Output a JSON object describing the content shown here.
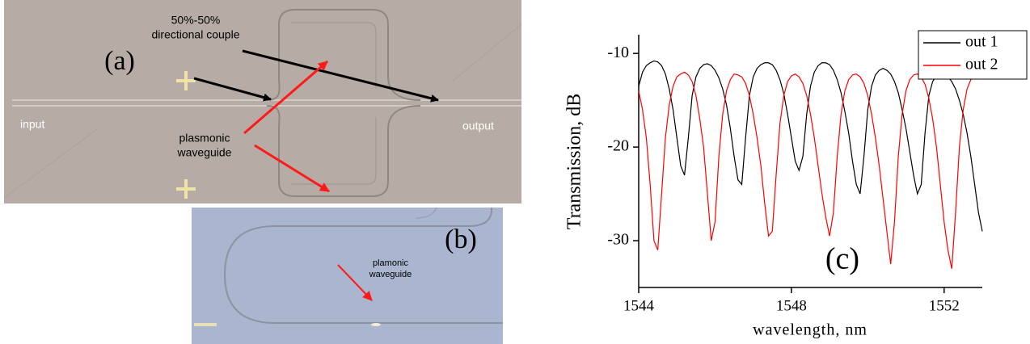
{
  "figure_a": {
    "panel_label": "(a)",
    "coupler_label": [
      "50%-50%",
      "directional couple"
    ],
    "input_label": "input",
    "output_label": "output",
    "waveguide_label": [
      "plasmonic",
      "waveguide"
    ]
  },
  "figure_b": {
    "panel_label": "(b)",
    "waveguide_label": [
      "plamonic",
      "waveguide"
    ]
  },
  "chart_data": {
    "type": "line",
    "panel_label": "(c)",
    "x_label": "wavelength, nm",
    "y_label": "Transmission, dB",
    "xlim": [
      1544,
      1553
    ],
    "ylim": [
      -35,
      -8
    ],
    "xticks": [
      1544,
      1548,
      1552
    ],
    "yticks": [
      -10,
      -20,
      -30
    ],
    "legend": "top-right",
    "x": [
      1544.0,
      1544.1,
      1544.2,
      1544.3,
      1544.4,
      1544.5,
      1544.6,
      1544.7,
      1544.8,
      1544.9,
      1545.0,
      1545.1,
      1545.2,
      1545.3,
      1545.4,
      1545.5,
      1545.6,
      1545.7,
      1545.8,
      1545.9,
      1546.0,
      1546.1,
      1546.2,
      1546.3,
      1546.4,
      1546.5,
      1546.6,
      1546.7,
      1546.8,
      1546.9,
      1547.0,
      1547.1,
      1547.2,
      1547.3,
      1547.4,
      1547.5,
      1547.6,
      1547.7,
      1547.8,
      1547.9,
      1548.0,
      1548.1,
      1548.2,
      1548.3,
      1548.4,
      1548.5,
      1548.6,
      1548.7,
      1548.8,
      1548.9,
      1549.0,
      1549.1,
      1549.2,
      1549.3,
      1549.4,
      1549.5,
      1549.6,
      1549.7,
      1549.8,
      1549.9,
      1550.0,
      1550.1,
      1550.2,
      1550.3,
      1550.4,
      1550.5,
      1550.6,
      1550.7,
      1550.8,
      1550.9,
      1551.0,
      1551.1,
      1551.2,
      1551.3,
      1551.4,
      1551.5,
      1551.6,
      1551.7,
      1551.8,
      1551.9,
      1552.0,
      1552.1,
      1552.2,
      1552.3,
      1552.4,
      1552.5,
      1552.6,
      1552.7,
      1552.8,
      1552.9,
      1553.0
    ],
    "series": [
      {
        "name": "out 1",
        "color": "#000000",
        "values": [
          -13.5,
          -12,
          -11.3,
          -11,
          -10.8,
          -10.9,
          -11.3,
          -12.2,
          -13.8,
          -16,
          -19,
          -22,
          -23,
          -19,
          -14.5,
          -12.5,
          -11.6,
          -11.2,
          -11.1,
          -11.3,
          -11.8,
          -12.6,
          -13.8,
          -15.5,
          -18,
          -21,
          -23.5,
          -24,
          -19,
          -14.5,
          -12.5,
          -11.6,
          -11.2,
          -11,
          -11,
          -11.2,
          -11.8,
          -12.8,
          -14.3,
          -16.5,
          -19,
          -21.5,
          -22.5,
          -21,
          -16.5,
          -13.5,
          -12,
          -11.3,
          -11,
          -11,
          -11.2,
          -11.8,
          -12.8,
          -14.2,
          -16.2,
          -18.5,
          -21.5,
          -24,
          -25,
          -21,
          -16,
          -13.5,
          -12.3,
          -11.8,
          -11.6,
          -11.8,
          -12.2,
          -13,
          -14.2,
          -16,
          -18,
          -20.5,
          -23,
          -25,
          -24,
          -18.5,
          -14.5,
          -13,
          -12.4,
          -12.2,
          -12.3,
          -12.5,
          -13,
          -13.8,
          -15,
          -16.5,
          -18.5,
          -21,
          -24,
          -27,
          -29
        ]
      },
      {
        "name": "out 2",
        "color": "#ff0000",
        "values": [
          -14,
          -16,
          -19,
          -24,
          -30,
          -31,
          -25,
          -19,
          -15.5,
          -13.5,
          -12.5,
          -12.2,
          -12,
          -12.3,
          -13,
          -14.5,
          -17,
          -20,
          -25,
          -30,
          -28,
          -21,
          -16.5,
          -14,
          -12.8,
          -12.2,
          -12.3,
          -12.5,
          -13.2,
          -14.5,
          -16.5,
          -19,
          -22,
          -26,
          -29.5,
          -29,
          -23,
          -17.5,
          -14.5,
          -13,
          -12.4,
          -12.2,
          -12.5,
          -13.2,
          -14.5,
          -16.5,
          -19,
          -22,
          -25,
          -27.5,
          -29.5,
          -27,
          -21,
          -16.5,
          -14,
          -12.8,
          -12.3,
          -12.2,
          -12.5,
          -13.2,
          -14.5,
          -16.5,
          -19,
          -22,
          -25.5,
          -29,
          -32.5,
          -28,
          -21,
          -16.5,
          -14,
          -12.8,
          -12.3,
          -12.2,
          -12.5,
          -13.3,
          -14.8,
          -17,
          -20,
          -24,
          -28,
          -31,
          -33,
          -27,
          -20,
          -16,
          -13.8,
          -12.8,
          -12.4,
          -12.2,
          -12.2
        ]
      }
    ]
  }
}
